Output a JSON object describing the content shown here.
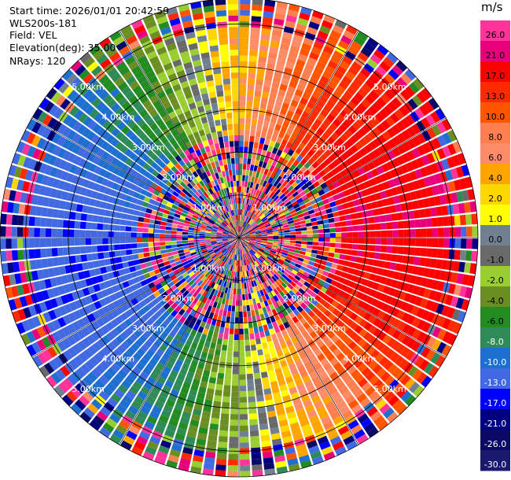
{
  "header": {
    "start_time": "Start time: 2026/01/01 20:42:59",
    "instrument": "WLS200s-181",
    "field": "Field: VEL",
    "elevation": "Elevation(deg): 35.00",
    "nrays": "NRays: 120"
  },
  "chart_data": {
    "type": "heatmap",
    "projection": "polar (PPI scan)",
    "field": "VEL",
    "units": "m/s",
    "nrays": 120,
    "range_rings_km": [
      1.0,
      2.0,
      3.0,
      4.0,
      5.0
    ],
    "range_ring_labels": [
      "1.00km",
      "2.00km",
      "3.00km",
      "4.00km",
      "5.00km"
    ],
    "max_range_km": 5.6,
    "grid": true,
    "colorbar": {
      "unit_label": "m/s",
      "position": "right",
      "ticks": [
        "26.0",
        "21.0",
        "17.0",
        "13.0",
        "10.0",
        "8.0",
        "6.0",
        "4.0",
        "2.0",
        "1.0",
        "0.0",
        "-1.0",
        "-2.0",
        "-4.0",
        "-6.0",
        "-8.0",
        "-10.0",
        "-13.0",
        "-17.0",
        "-21.0",
        "-26.0",
        "-30.0"
      ],
      "colors": [
        "#ff3399",
        "#e8007a",
        "#ff0000",
        "#ff2a00",
        "#ff5500",
        "#ff7f50",
        "#ff8c69",
        "#ffa500",
        "#ffd700",
        "#ffff00",
        "#708090",
        "#696969",
        "#9acd32",
        "#6b8e23",
        "#228b22",
        "#2e8b57",
        "#1e6fcf",
        "#4169e1",
        "#0000ff",
        "#000080",
        "#0a0a66",
        "#191970"
      ]
    }
  }
}
